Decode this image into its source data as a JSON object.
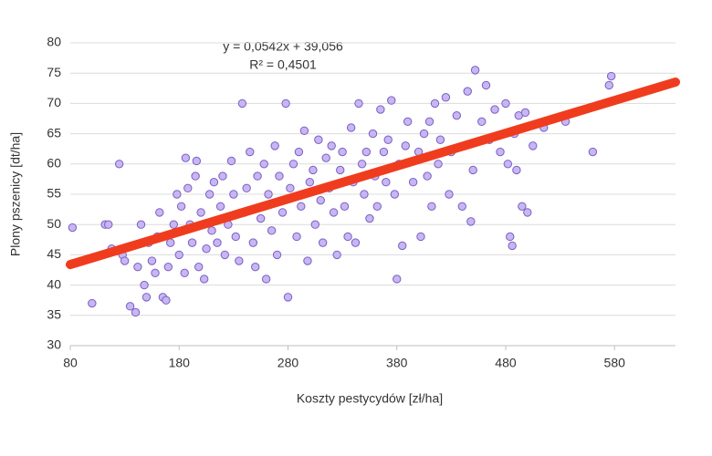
{
  "chart_data": {
    "type": "scatter",
    "x_label": "Koszty pestycydów [zł/ha]",
    "y_label": "Plony pszenicy [dt/ha]",
    "annotations": [
      "y = 0,0542x + 39,056",
      "R² = 0,4501"
    ],
    "trendline": {
      "slope": 0.0542,
      "intercept": 39.056,
      "color": "#f03c1e"
    },
    "xlim": [
      80,
      636
    ],
    "ylim": [
      30,
      80
    ],
    "xticks": [
      80,
      180,
      280,
      380,
      480,
      580
    ],
    "yticks": [
      30,
      35,
      40,
      45,
      50,
      55,
      60,
      65,
      70,
      75,
      80
    ],
    "grid": true,
    "color": "#c7b6f2",
    "edge_color": "#7b5fc4",
    "x": [
      82,
      100,
      112,
      115,
      118,
      125,
      128,
      130,
      135,
      140,
      142,
      145,
      148,
      150,
      152,
      155,
      158,
      160,
      162,
      165,
      168,
      170,
      172,
      175,
      178,
      180,
      182,
      185,
      186,
      188,
      190,
      192,
      195,
      196,
      198,
      200,
      203,
      205,
      208,
      210,
      212,
      215,
      218,
      220,
      222,
      225,
      228,
      230,
      232,
      235,
      238,
      240,
      242,
      245,
      248,
      250,
      252,
      255,
      258,
      260,
      262,
      265,
      268,
      270,
      272,
      275,
      278,
      280,
      282,
      285,
      288,
      290,
      292,
      295,
      298,
      300,
      303,
      305,
      308,
      310,
      312,
      315,
      318,
      320,
      322,
      325,
      328,
      330,
      332,
      335,
      338,
      340,
      342,
      345,
      348,
      350,
      352,
      355,
      358,
      360,
      362,
      365,
      368,
      370,
      372,
      375,
      378,
      380,
      382,
      385,
      388,
      390,
      395,
      400,
      402,
      405,
      408,
      410,
      412,
      415,
      418,
      420,
      425,
      428,
      430,
      435,
      440,
      445,
      448,
      450,
      452,
      458,
      462,
      465,
      470,
      475,
      480,
      482,
      484,
      486,
      488,
      490,
      492,
      495,
      498,
      500,
      505,
      515,
      535,
      560,
      575,
      577
    ],
    "values": [
      49.5,
      37,
      50,
      50,
      46,
      60,
      45,
      44,
      36.5,
      35.5,
      43,
      50,
      40,
      38,
      47,
      44,
      42,
      48,
      52,
      38,
      37.5,
      43,
      47,
      50,
      55,
      45,
      53,
      42,
      61,
      56,
      50,
      47,
      58,
      60.5,
      43,
      52,
      41,
      46,
      55,
      49,
      57,
      47,
      53,
      58,
      45,
      50,
      60.5,
      55,
      48,
      44,
      70,
      52,
      56,
      62,
      47,
      43,
      58,
      51,
      60,
      41,
      55,
      49,
      63,
      45,
      58,
      52,
      70,
      38,
      56,
      60,
      48,
      62,
      53,
      65.5,
      44,
      57,
      59,
      50,
      64,
      54,
      47,
      61,
      56,
      63,
      52,
      45,
      59,
      62,
      53,
      48,
      66,
      57,
      47,
      70,
      60,
      55,
      62,
      51,
      65,
      58,
      53,
      69,
      62,
      57,
      64,
      70.5,
      55,
      41,
      60,
      46.5,
      63,
      67,
      57,
      62,
      48,
      65,
      58,
      67,
      53,
      70,
      60,
      64,
      71,
      55,
      62,
      68,
      53,
      72,
      50.5,
      59,
      75.5,
      67,
      73,
      64,
      69,
      62,
      70,
      60,
      48,
      46.5,
      65,
      59,
      68,
      53,
      68.5,
      52,
      63,
      66,
      67,
      62,
      73,
      74.5
    ]
  }
}
